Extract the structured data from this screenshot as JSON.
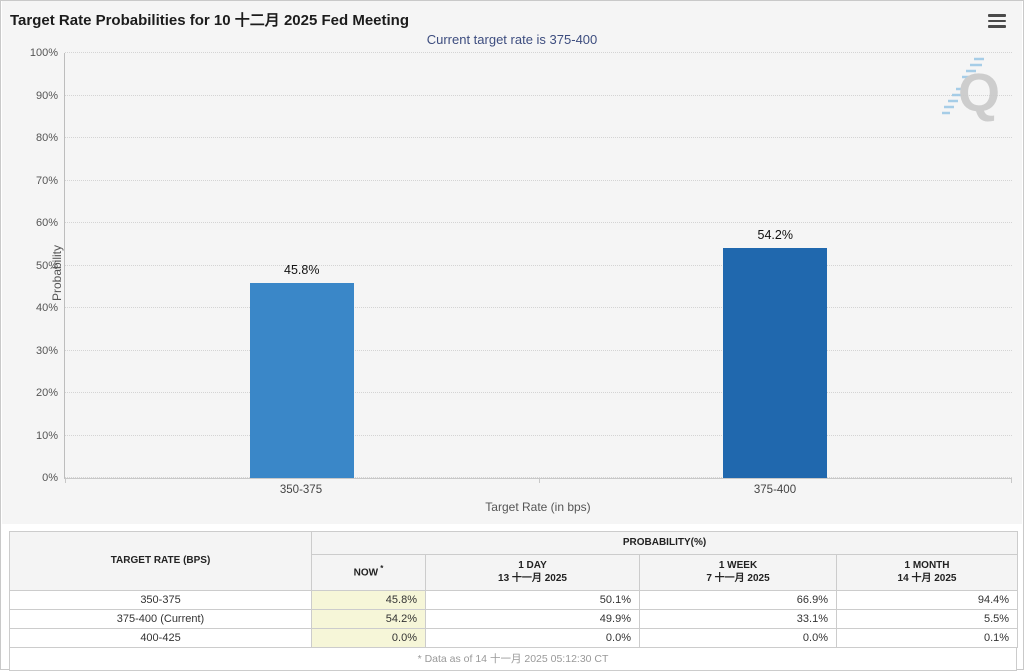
{
  "header": {
    "title": "Target Rate Probabilities for 10 十二月 2025 Fed Meeting",
    "subtitle": "Current target rate is 375-400",
    "menu_icon": "hamburger-menu-icon"
  },
  "chart_data": {
    "type": "bar",
    "title": "Target Rate Probabilities for 10 十二月 2025 Fed Meeting",
    "subtitle": "Current target rate is 375-400",
    "categories": [
      "350-375",
      "375-400"
    ],
    "values": [
      45.8,
      54.2
    ],
    "bar_labels": [
      "45.8%",
      "54.2%"
    ],
    "bar_colors": [
      "#3a87c8",
      "#2068ae"
    ],
    "bar_centers_pct": [
      25,
      75
    ],
    "xlabel": "Target Rate (in bps)",
    "ylabel": "Probability",
    "ylim": [
      0,
      100
    ],
    "ytick_step": 10,
    "ytick_suffix": "%",
    "grid": "dotted horizontal gridlines, left and bottom axis lines",
    "legend": "none",
    "watermark_letter": "Q"
  },
  "table": {
    "col1_header": "TARGET RATE (BPS)",
    "group_header": "PROBABILITY(%)",
    "columns": [
      {
        "line1": "NOW",
        "sup": "*",
        "line2": ""
      },
      {
        "line1": "1 DAY",
        "sup": "",
        "line2": "13 十一月 2025"
      },
      {
        "line1": "1 WEEK",
        "sup": "",
        "line2": "7 十一月 2025"
      },
      {
        "line1": "1 MONTH",
        "sup": "",
        "line2": "14 十月 2025"
      }
    ],
    "rows": [
      {
        "rate": "350-375",
        "now": "45.8%",
        "day": "50.1%",
        "week": "66.9%",
        "month": "94.4%"
      },
      {
        "rate": "375-400 (Current)",
        "now": "54.2%",
        "day": "49.9%",
        "week": "33.1%",
        "month": "5.5%"
      },
      {
        "rate": "400-425",
        "now": "0.0%",
        "day": "0.0%",
        "week": "0.0%",
        "month": "0.1%"
      }
    ],
    "footnote": "* Data as of 14 十一月 2025 05:12:30 CT"
  },
  "colors": {
    "panel_bg": "#f5f5f5",
    "subtitle": "#3d4d7f",
    "bar_light_blue": "#3a87c8",
    "bar_dark_blue": "#2068ae",
    "now_column_bg": "#f6f6d8",
    "table_border": "#cccccc",
    "watermark_gray": "#c9c9c9",
    "watermark_blue": "#9ec9e6"
  }
}
